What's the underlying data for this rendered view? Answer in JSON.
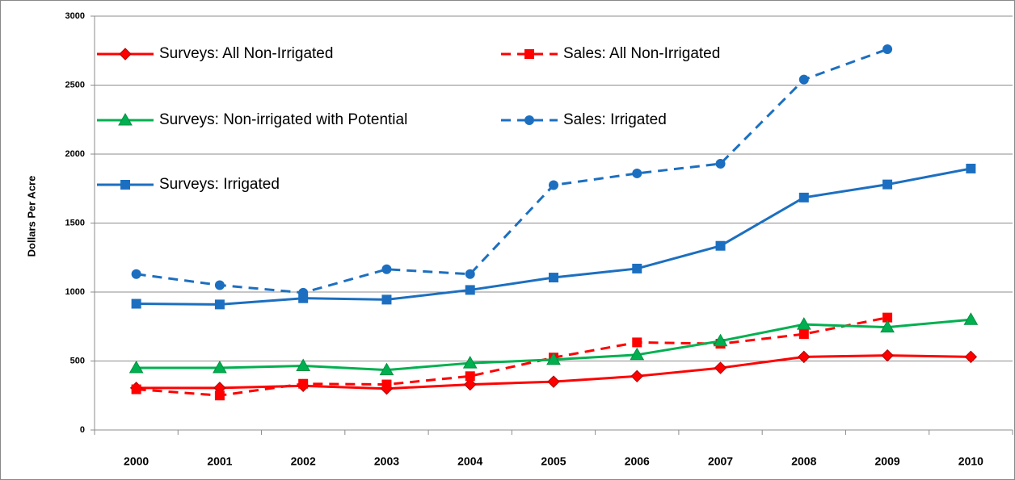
{
  "chart_data": {
    "type": "line",
    "y_label": "Dollars Per Acre",
    "categories": [
      "2000",
      "2001",
      "2002",
      "2003",
      "2004",
      "2005",
      "2006",
      "2007",
      "2008",
      "2009",
      "2010"
    ],
    "ylim": [
      0,
      3000
    ],
    "yticks": [
      0,
      500,
      1000,
      1500,
      2000,
      2500,
      3000
    ],
    "grid": true,
    "series": [
      {
        "name": "Surveys: All Non-Irrigated",
        "color": "#ff0000",
        "marker": "diamond",
        "dashed": false,
        "values": [
          305,
          305,
          320,
          300,
          330,
          350,
          390,
          450,
          530,
          540,
          530
        ]
      },
      {
        "name": "Sales: All Non-Irrigated",
        "color": "#ff0000",
        "marker": "square",
        "dashed": true,
        "values": [
          295,
          250,
          335,
          330,
          390,
          525,
          635,
          625,
          695,
          815,
          null
        ]
      },
      {
        "name": "Surveys: Non-irrigated with Potential",
        "color": "#00b050",
        "marker": "triangle",
        "dashed": false,
        "values": [
          450,
          450,
          465,
          435,
          485,
          510,
          545,
          645,
          765,
          745,
          800
        ]
      },
      {
        "name": "Sales: Irrigated",
        "color": "#1c6fc0",
        "marker": "circle",
        "dashed": true,
        "values": [
          1130,
          1050,
          995,
          1165,
          1130,
          1775,
          1860,
          1930,
          2540,
          2760,
          null
        ]
      },
      {
        "name": "Surveys: Irrigated",
        "color": "#1c6fc0",
        "marker": "square",
        "dashed": false,
        "values": [
          915,
          910,
          955,
          945,
          1015,
          1105,
          1170,
          1335,
          1685,
          1780,
          1895
        ]
      }
    ]
  }
}
